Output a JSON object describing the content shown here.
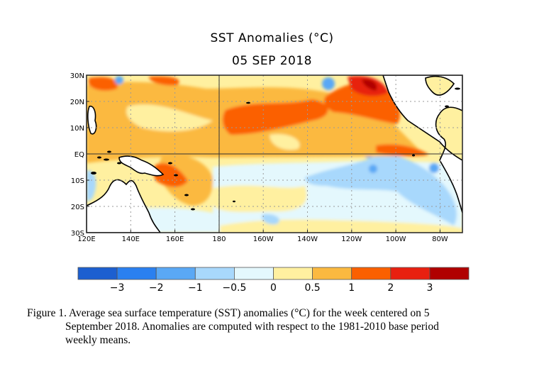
{
  "chart_data": {
    "type": "heatmap",
    "title": "SST Anomalies (°C)",
    "subtitle": "05 SEP 2018",
    "xlabel": "",
    "ylabel": "",
    "x_ticks": [
      "120E",
      "140E",
      "160E",
      "180",
      "160W",
      "140W",
      "120W",
      "100W",
      "80W"
    ],
    "y_ticks": [
      "30N",
      "20N",
      "10N",
      "EQ",
      "10S",
      "20S",
      "30S"
    ],
    "x_range": [
      "120E",
      "70W"
    ],
    "y_range": [
      "30S",
      "30N"
    ],
    "grid": true,
    "legend": {
      "position": "bottom",
      "tick_labels": [
        "−3",
        "−2",
        "−1",
        "−0.5",
        "0",
        "0.5",
        "1",
        "2",
        "3"
      ],
      "bins": [
        {
          "range": "< -3",
          "color": "#1c5fd0"
        },
        {
          "range": "-3 to -2",
          "color": "#2a80f0"
        },
        {
          "range": "-2 to -1",
          "color": "#5aa8f5"
        },
        {
          "range": "-1 to -0.5",
          "color": "#a8d8fc"
        },
        {
          "range": "-0.5 to 0",
          "color": "#e4f8fd"
        },
        {
          "range": "0 to 0.5",
          "color": "#fff0a0"
        },
        {
          "range": "0.5 to 1",
          "color": "#fbb940"
        },
        {
          "range": "1 to 2",
          "color": "#fb6000"
        },
        {
          "range": "2 to 3",
          "color": "#e82010"
        },
        {
          "range": "> 3",
          "color": "#b00000"
        }
      ]
    },
    "regions": [
      {
        "name": "NE Pacific off Baja California",
        "anomaly": "2 to 3"
      },
      {
        "name": "Central N Pacific 10N-20N band",
        "anomaly": "1 to 2"
      },
      {
        "name": "SW Pacific near Solomon Is.",
        "anomaly": "1 to 2"
      },
      {
        "name": "Eastern equatorial Pacific south of EQ",
        "anomaly": "-2 to -0.5"
      },
      {
        "name": "Peru coast",
        "anomaly": "-2 to -1"
      }
    ]
  },
  "caption": {
    "line1": "Figure 1. Average sea surface temperature (SST) anomalies (°C) for the week centered on 5",
    "line2": "September 2018.  Anomalies are computed with respect to the 1981-2010 base period",
    "line3": "weekly means."
  }
}
